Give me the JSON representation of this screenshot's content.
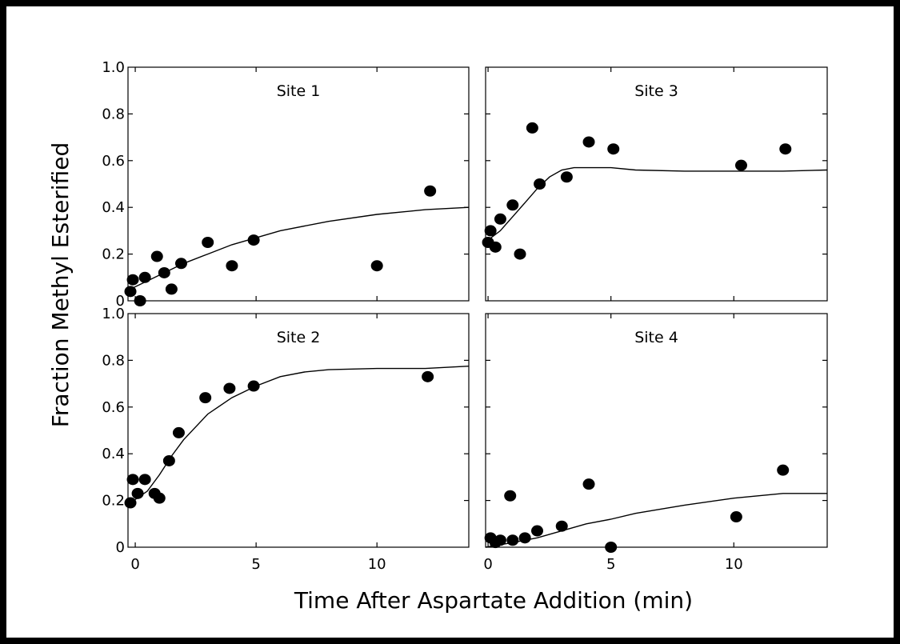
{
  "figure": {
    "ylabel": "Fraction Methyl Esterified",
    "xlabel": "Time After Aspartate Addition (min)"
  },
  "chart_data": [
    {
      "type": "scatter",
      "title": "Site 1",
      "xlim": [
        -0.3,
        13.8
      ],
      "ylim": [
        0,
        1.0
      ],
      "x_ticks": [
        "0",
        "5",
        "10"
      ],
      "y_ticks": [
        "0",
        "0.2",
        "0.4",
        "0.6",
        "0.8",
        "1.0"
      ],
      "points": [
        {
          "x": -0.2,
          "y": 0.04
        },
        {
          "x": -0.1,
          "y": 0.09
        },
        {
          "x": 0.2,
          "y": 0.0
        },
        {
          "x": 0.4,
          "y": 0.1
        },
        {
          "x": 0.9,
          "y": 0.19
        },
        {
          "x": 1.2,
          "y": 0.12
        },
        {
          "x": 1.5,
          "y": 0.05
        },
        {
          "x": 1.9,
          "y": 0.16
        },
        {
          "x": 3.0,
          "y": 0.25
        },
        {
          "x": 4.0,
          "y": 0.15
        },
        {
          "x": 4.9,
          "y": 0.26
        },
        {
          "x": 10.0,
          "y": 0.15
        },
        {
          "x": 12.2,
          "y": 0.47
        }
      ],
      "fit": {
        "x": [
          -0.2,
          1,
          2,
          3,
          4,
          5,
          6,
          8,
          10,
          12,
          13.8
        ],
        "y": [
          0.05,
          0.11,
          0.16,
          0.2,
          0.24,
          0.27,
          0.3,
          0.34,
          0.37,
          0.39,
          0.4
        ]
      }
    },
    {
      "type": "scatter",
      "title": "Site 3",
      "xlim": [
        -0.1,
        13.8
      ],
      "ylim": [
        0,
        1.0
      ],
      "x_ticks": [
        "0",
        "5",
        "10"
      ],
      "y_ticks": [],
      "points": [
        {
          "x": 0.0,
          "y": 0.25
        },
        {
          "x": 0.1,
          "y": 0.3
        },
        {
          "x": 0.3,
          "y": 0.23
        },
        {
          "x": 0.5,
          "y": 0.35
        },
        {
          "x": 1.0,
          "y": 0.41
        },
        {
          "x": 1.3,
          "y": 0.2
        },
        {
          "x": 1.8,
          "y": 0.74
        },
        {
          "x": 2.1,
          "y": 0.5
        },
        {
          "x": 3.2,
          "y": 0.53
        },
        {
          "x": 4.1,
          "y": 0.68
        },
        {
          "x": 5.1,
          "y": 0.65
        },
        {
          "x": 10.3,
          "y": 0.58
        },
        {
          "x": 12.1,
          "y": 0.65
        }
      ],
      "fit": {
        "x": [
          0,
          0.5,
          1,
          1.5,
          2,
          2.5,
          3,
          3.5,
          4,
          5,
          6,
          8,
          10,
          12,
          13.8
        ],
        "y": [
          0.26,
          0.3,
          0.36,
          0.42,
          0.48,
          0.53,
          0.56,
          0.57,
          0.57,
          0.57,
          0.56,
          0.555,
          0.555,
          0.555,
          0.56
        ]
      }
    },
    {
      "type": "scatter",
      "title": "Site 2",
      "xlim": [
        -0.3,
        13.8
      ],
      "ylim": [
        0,
        1.0
      ],
      "x_ticks": [
        "0",
        "5",
        "10"
      ],
      "y_ticks": [
        "0",
        "0.2",
        "0.4",
        "0.6",
        "0.8",
        "1.0"
      ],
      "points": [
        {
          "x": -0.2,
          "y": 0.19
        },
        {
          "x": -0.1,
          "y": 0.29
        },
        {
          "x": 0.1,
          "y": 0.23
        },
        {
          "x": 0.4,
          "y": 0.29
        },
        {
          "x": 0.8,
          "y": 0.23
        },
        {
          "x": 1.0,
          "y": 0.21
        },
        {
          "x": 1.4,
          "y": 0.37
        },
        {
          "x": 1.8,
          "y": 0.49
        },
        {
          "x": 2.9,
          "y": 0.64
        },
        {
          "x": 3.9,
          "y": 0.68
        },
        {
          "x": 4.9,
          "y": 0.69
        },
        {
          "x": 12.1,
          "y": 0.73
        }
      ],
      "fit": {
        "x": [
          -0.2,
          0.5,
          1,
          1.5,
          2,
          3,
          4,
          5,
          6,
          7,
          8,
          10,
          12,
          13.8
        ],
        "y": [
          0.19,
          0.24,
          0.31,
          0.39,
          0.46,
          0.57,
          0.64,
          0.69,
          0.73,
          0.75,
          0.76,
          0.765,
          0.765,
          0.775
        ]
      }
    },
    {
      "type": "scatter",
      "title": "Site 4",
      "xlim": [
        -0.1,
        13.8
      ],
      "ylim": [
        0,
        1.0
      ],
      "x_ticks": [
        "0",
        "5",
        "10"
      ],
      "y_ticks": [],
      "points": [
        {
          "x": 0.1,
          "y": 0.04
        },
        {
          "x": 0.3,
          "y": 0.02
        },
        {
          "x": 0.5,
          "y": 0.03
        },
        {
          "x": 0.9,
          "y": 0.22
        },
        {
          "x": 1.0,
          "y": 0.03
        },
        {
          "x": 1.5,
          "y": 0.04
        },
        {
          "x": 2.0,
          "y": 0.07
        },
        {
          "x": 3.0,
          "y": 0.09
        },
        {
          "x": 4.1,
          "y": 0.27
        },
        {
          "x": 5.0,
          "y": 0.0
        },
        {
          "x": 10.1,
          "y": 0.13
        },
        {
          "x": 12.0,
          "y": 0.33
        }
      ],
      "fit": {
        "x": [
          -0.1,
          1,
          2,
          3,
          4,
          5,
          6,
          8,
          10,
          12,
          13.8
        ],
        "y": [
          0.0,
          0.02,
          0.04,
          0.07,
          0.1,
          0.12,
          0.145,
          0.18,
          0.21,
          0.23,
          0.23
        ]
      }
    }
  ]
}
